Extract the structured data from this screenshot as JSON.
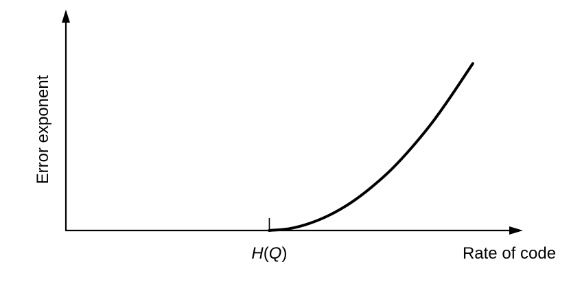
{
  "chart_data": {
    "type": "line",
    "ylabel": "Error exponent",
    "xlabel": "Rate of code",
    "x_tick_label_parts": [
      {
        "text": "H",
        "italic": true
      },
      {
        "text": "(",
        "italic": false
      },
      {
        "text": "Q",
        "italic": true
      },
      {
        "text": ")",
        "italic": false
      }
    ],
    "x_tick_value": 1.0,
    "xlim": [
      0,
      2.25
    ],
    "ylim": [
      0,
      1.1
    ],
    "series": [
      {
        "x": [
          1.0,
          1.1,
          1.2,
          1.3,
          1.4,
          1.5,
          1.6,
          1.7,
          1.8,
          1.9,
          2.0
        ],
        "values": [
          0.0,
          0.01,
          0.038,
          0.083,
          0.145,
          0.225,
          0.32,
          0.435,
          0.565,
          0.715,
          0.875
        ]
      }
    ],
    "grid": false,
    "legend": "none",
    "colors": {
      "line": "#000000",
      "axis": "#000000"
    }
  }
}
